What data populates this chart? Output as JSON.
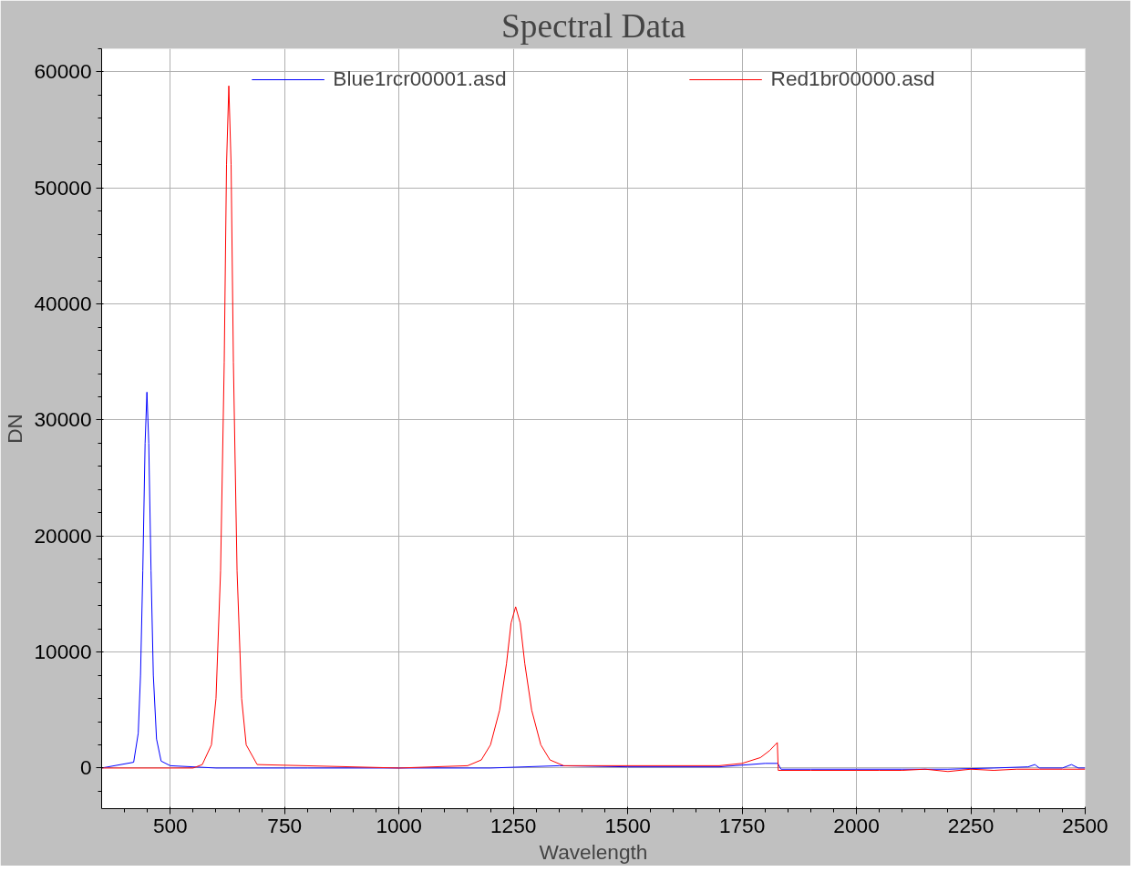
{
  "chart_data": {
    "type": "line",
    "title": "Spectral Data",
    "xlabel": "Wavelength",
    "ylabel": "DN",
    "xlim": [
      350,
      2500
    ],
    "ylim": [
      -3500,
      62000
    ],
    "xticks": [
      500,
      750,
      1000,
      1250,
      1500,
      1750,
      2000,
      2250,
      2500
    ],
    "yticks": [
      0,
      10000,
      20000,
      30000,
      40000,
      50000,
      60000
    ],
    "grid": true,
    "legend": "top",
    "marker": "none",
    "line_style": "solid",
    "series": [
      {
        "name": "Blue1rcr00001.asd",
        "color": "#0000ff",
        "x": [
          350,
          420,
          430,
          435,
          440,
          445,
          449,
          453,
          458,
          463,
          470,
          480,
          500,
          600,
          800,
          1000,
          1200,
          1350,
          1500,
          1700,
          1800,
          1828,
          1835,
          1900,
          2000,
          2100,
          2200,
          2300,
          2375,
          2390,
          2400,
          2450,
          2470,
          2485,
          2500
        ],
        "values": [
          0,
          500,
          3000,
          8000,
          17000,
          28000,
          32400,
          28000,
          17000,
          8000,
          2500,
          600,
          200,
          0,
          0,
          0,
          0,
          200,
          100,
          100,
          400,
          400,
          -100,
          -100,
          -100,
          -100,
          -100,
          0,
          100,
          300,
          0,
          0,
          300,
          0,
          0
        ]
      },
      {
        "name": "Red1br00000.asd",
        "color": "#ff0000",
        "x": [
          350,
          550,
          570,
          590,
          600,
          610,
          618,
          623,
          628,
          633,
          638,
          646,
          656,
          666,
          690,
          1000,
          1150,
          1180,
          1200,
          1220,
          1235,
          1245,
          1255,
          1265,
          1275,
          1290,
          1310,
          1330,
          1360,
          1700,
          1750,
          1790,
          1810,
          1827,
          1829,
          1900,
          2000,
          2050,
          2100,
          2150,
          2200,
          2250,
          2300,
          2350,
          2400,
          2450,
          2500
        ],
        "values": [
          0,
          0,
          300,
          2000,
          6000,
          17000,
          35000,
          52000,
          58800,
          52000,
          35000,
          17000,
          6000,
          2000,
          300,
          0,
          200,
          700,
          2000,
          5000,
          9000,
          12500,
          13900,
          12500,
          9000,
          5000,
          2000,
          700,
          200,
          200,
          400,
          900,
          1500,
          2200,
          -200,
          -200,
          -200,
          -200,
          -200,
          -100,
          -300,
          -100,
          -200,
          -100,
          -100,
          -100,
          -100
        ]
      }
    ]
  }
}
